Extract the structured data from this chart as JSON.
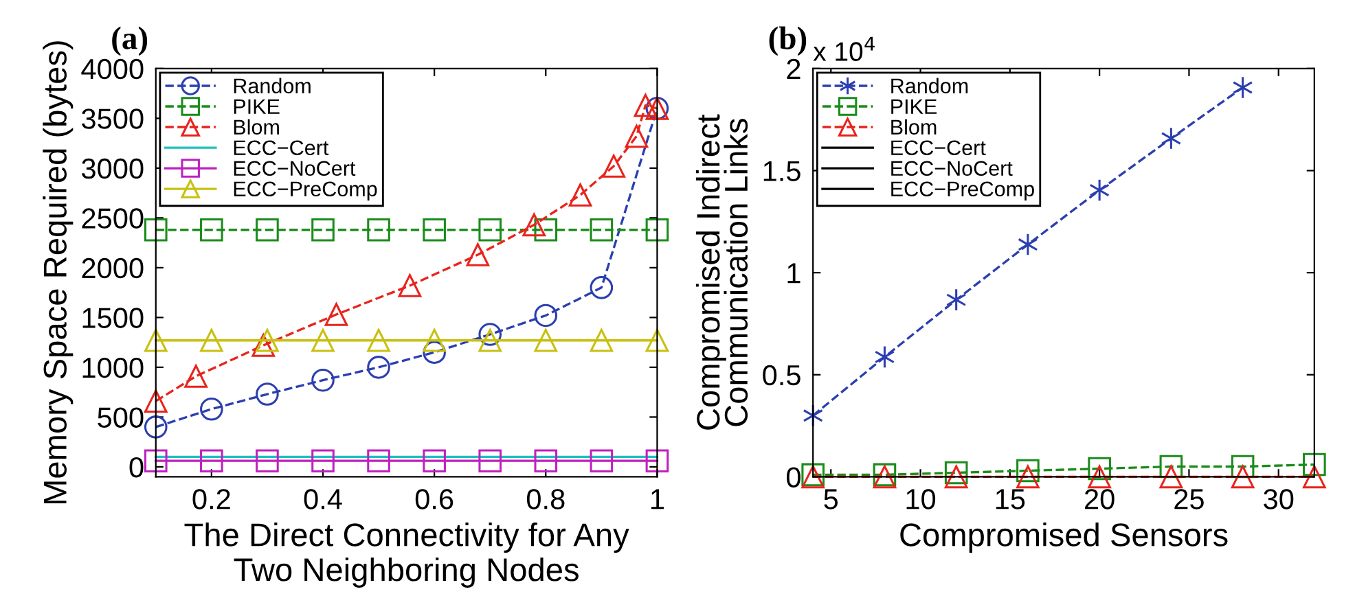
{
  "chart_data": [
    {
      "type": "line",
      "title": "(a)",
      "xlabel": "The Direct Connectivity for Any\nTwo Neighboring Nodes",
      "ylabel": "Memory Space Required (bytes)",
      "x": [
        0.1,
        0.2,
        0.3,
        0.4,
        0.5,
        0.6,
        0.7,
        0.8,
        0.9,
        1.0
      ],
      "xlim": [
        0.1,
        1.0
      ],
      "xticks": [
        {
          "value": 0.2,
          "label": "0.2"
        },
        {
          "value": 0.4,
          "label": "0.4"
        },
        {
          "value": 0.6,
          "label": "0.6"
        },
        {
          "value": 0.8,
          "label": "0.8"
        },
        1
      ],
      "ylim": [
        -100,
        4000
      ],
      "yticks": [
        0,
        500,
        1000,
        1500,
        2000,
        2500,
        3000,
        3500,
        4000
      ],
      "grid": false,
      "legend": "top left",
      "series": [
        {
          "name": "Random",
          "color": "#2b3fb0",
          "marker": "circle",
          "line_style": "dashed",
          "values": [
            400,
            580,
            730,
            870,
            1000,
            1150,
            1330,
            1520,
            1800,
            3600
          ]
        },
        {
          "name": "PIKE",
          "color": "#1a8c1a",
          "marker": "square",
          "line_style": "dashed",
          "values": [
            2380,
            2380,
            2380,
            2380,
            2380,
            2380,
            2380,
            2380,
            2380,
            2380
          ]
        },
        {
          "name": "Blom",
          "color": "#e8241c",
          "marker": "triangle",
          "line_style": "dashed",
          "x": [
            0.1,
            0.172,
            0.293,
            0.424,
            0.556,
            0.678,
            0.779,
            0.862,
            0.922,
            0.963,
            0.979,
            1.0
          ],
          "values": [
            660,
            910,
            1220,
            1530,
            1820,
            2130,
            2430,
            2730,
            3020,
            3320,
            3630,
            3600
          ]
        },
        {
          "name": "ECC−Cert",
          "color": "#20c0c0",
          "marker": "none",
          "line_style": "solid",
          "values": [
            100,
            100,
            100,
            100,
            100,
            100,
            100,
            100,
            100,
            100
          ]
        },
        {
          "name": "ECC−NoCert",
          "color": "#c020c0",
          "marker": "square",
          "line_style": "solid",
          "values": [
            60,
            60,
            60,
            60,
            60,
            60,
            60,
            60,
            60,
            60
          ]
        },
        {
          "name": "ECC−PreComp",
          "color": "#c8c010",
          "marker": "triangle",
          "line_style": "solid",
          "values": [
            1270,
            1270,
            1270,
            1270,
            1270,
            1270,
            1270,
            1270,
            1270,
            1270
          ]
        }
      ]
    },
    {
      "type": "line",
      "title": "(b)",
      "xlabel": "Compromised Sensors",
      "ylabel": "Compromised Indirect\nCommunication Links",
      "annotations": [
        "x 10$^{4}$"
      ],
      "x": [
        4,
        8,
        12,
        16,
        20,
        24,
        28,
        32
      ],
      "xlim": [
        4,
        32
      ],
      "xticks": [
        5,
        10,
        15,
        20,
        25,
        30
      ],
      "ylim": [
        0,
        2
      ],
      "yticks": [
        0,
        0.5,
        1,
        1.5,
        2
      ],
      "grid": false,
      "legend": "top left",
      "series": [
        {
          "name": "Random",
          "color": "#2b3fb0",
          "marker": "cross",
          "line_style": "dashed",
          "x": [
            4,
            8,
            12,
            16,
            20,
            24,
            28
          ],
          "values": [
            0.3,
            0.587,
            0.867,
            1.138,
            1.404,
            1.658,
            1.907
          ]
        },
        {
          "name": "PIKE",
          "color": "#1a8c1a",
          "marker": "square",
          "line_style": "dashed",
          "values": [
            0.01,
            0.01,
            0.02,
            0.03,
            0.04,
            0.05,
            0.05,
            0.06
          ]
        },
        {
          "name": "Blom",
          "color": "#e8241c",
          "marker": "triangle",
          "line_style": "dashed",
          "values": [
            0,
            0,
            0,
            0,
            0,
            0,
            0,
            0
          ]
        },
        {
          "name": "ECC−Cert",
          "color": "#000000",
          "marker": "none",
          "line_style": "solid",
          "values": [
            null,
            null,
            null,
            null,
            null,
            null,
            null,
            null
          ]
        },
        {
          "name": "ECC−NoCert",
          "color": "#000000",
          "marker": "none",
          "line_style": "solid",
          "values": [
            null,
            null,
            null,
            null,
            null,
            null,
            null,
            null
          ]
        },
        {
          "name": "ECC−PreComp",
          "color": "#000000",
          "marker": "none",
          "line_style": "solid",
          "values": [
            null,
            null,
            null,
            null,
            null,
            null,
            null,
            null
          ]
        }
      ]
    }
  ]
}
